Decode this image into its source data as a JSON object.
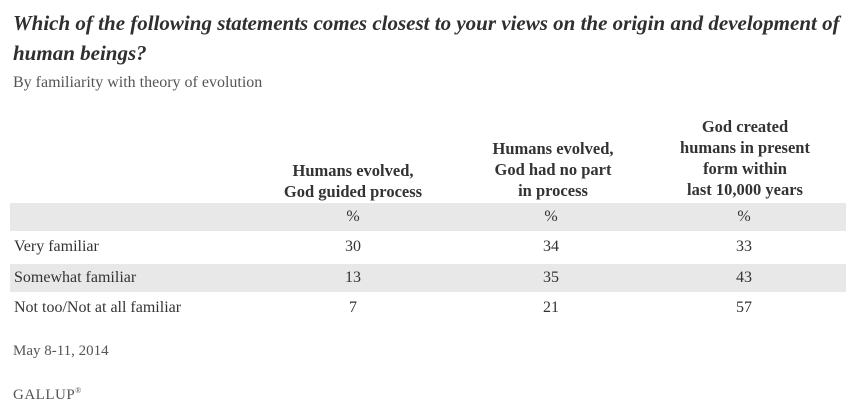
{
  "chart_data": {
    "type": "table",
    "title": "Which of the following statements comes closest to your views on the origin and development of human beings?",
    "subtitle": "By familiarity with theory of evolution",
    "columns": [
      "Humans evolved,\nGod guided process",
      "Humans evolved,\nGod had no part\nin process",
      "God created\nhumans in present\nform within\nlast 10,000 years"
    ],
    "unit_row": [
      "%",
      "%",
      "%"
    ],
    "rows": [
      {
        "label": "Very familiar",
        "values": [
          "30",
          "34",
          "33"
        ]
      },
      {
        "label": "Somewhat familiar",
        "values": [
          "13",
          "35",
          "43"
        ]
      },
      {
        "label": "Not too/Not at all familiar",
        "values": [
          "7",
          "21",
          "57"
        ]
      }
    ],
    "date": "May 8-11, 2014",
    "source": "GALLUP"
  }
}
